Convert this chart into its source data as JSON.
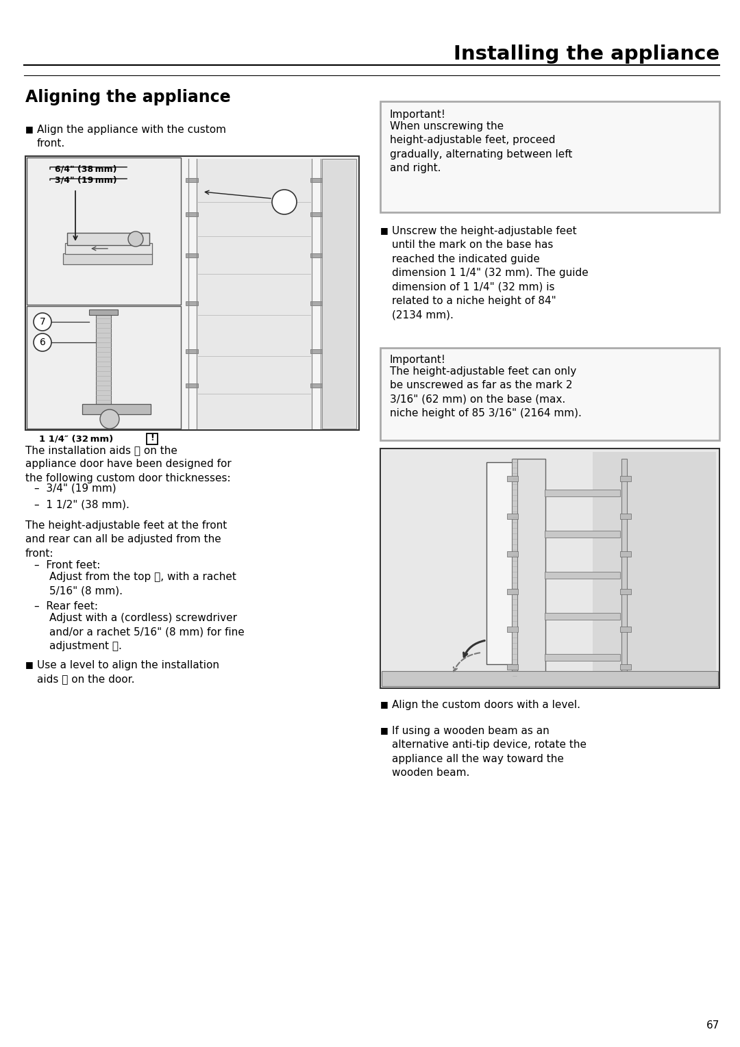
{
  "page_title": "Installing the appliance",
  "section_title": "Aligning the appliance",
  "bg_color": "#ffffff",
  "page_number": "67",
  "important_box1_title": "Important!",
  "important_box1_text": "When unscrewing the\nheight-adjustable feet, proceed\ngradually, alternating between left\nand right.",
  "important_box2_title": "Important!",
  "important_box2_text": "The height-adjustable feet can only\nbe unscrewed as far as the mark 2\n3/16\" (62 mm) on the base (max.\nniche height of 85 3/16\" (2164 mm).",
  "bullet1_left": "Align the appliance with the custom\nfront.",
  "body1_left": "The installation aids ⓤ on the\nappliance door have been designed for\nthe following custom door thicknesses:",
  "dash1a": "–  3/4\" (19 mm)",
  "dash1b": "–  1 1/2\" (38 mm).",
  "body2_left": "The height-adjustable feet at the front\nand rear can all be adjusted from the\nfront:",
  "dash2a_head": "–  Front feet:",
  "dash2a_body": "Adjust from the top ⓥ, with a rachet\n5/16\" (8 mm).",
  "dash2b_head": "–  Rear feet:",
  "dash2b_body": "Adjust with a (cordless) screwdriver\nand/or a rachet 5/16\" (8 mm) for fine\nadjustment ⓦ.",
  "bullet2_left": "Use a level to align the installation\naids ⓤ on the door.",
  "bullet1_right": "Unscrew the height-adjustable feet\nuntil the mark on the base has\nreached the indicated guide\ndimension 1 1/4\" (32 mm). The guide\ndimension of 1 1/4\" (32 mm) is\nrelated to a niche height of 84\"\n(2134 mm).",
  "bullet2_right": "Align the custom doors with a level.",
  "bullet3_right": "If using a wooden beam as an\nalternative anti-tip device, rotate the\nappliance all the way toward the\nwooden beam."
}
